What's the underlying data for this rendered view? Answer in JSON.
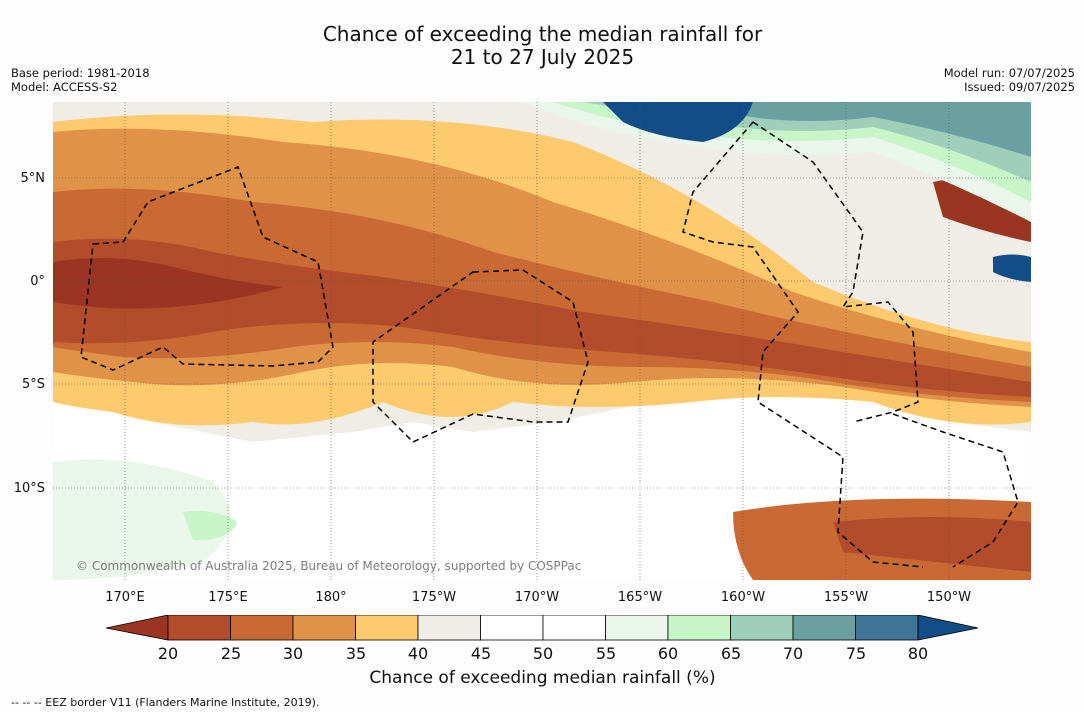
{
  "title": {
    "line1": "Chance of exceeding the median rainfall for",
    "line2": "21 to 27 July 2025"
  },
  "meta_left": {
    "base_period": "Base period: 1981-2018",
    "model": "Model: ACCESS-S2"
  },
  "meta_right": {
    "model_run": "Model run: 07/07/2025",
    "issued": "Issued: 09/07/2025"
  },
  "lat_labels": [
    "5°N",
    "0°",
    "5°S",
    "10°S"
  ],
  "lon_labels": [
    "170°E",
    "175°E",
    "180°",
    "175°W",
    "170°W",
    "165°W",
    "160°W",
    "155°W",
    "150°W"
  ],
  "credit": "© Commonwealth of Australia 2025, Bureau of Meteorology, supported by COSPPac",
  "colorbar": {
    "ticks": [
      "20",
      "25",
      "30",
      "35",
      "40",
      "45",
      "50",
      "55",
      "60",
      "65",
      "70",
      "75",
      "80"
    ],
    "colors": [
      "#9a3521",
      "#b24c2b",
      "#c96a34",
      "#e09248",
      "#fdca6e",
      "#f0ece6",
      "#ffffff",
      "#ffffff",
      "#eaf6ea",
      "#c7f5c8",
      "#9dcfba",
      "#6ba0a3",
      "#3f7596",
      "#124d88"
    ],
    "label": "Chance of exceeding median rainfall (%)"
  },
  "legend_note": "--  --  -- EEZ border V11 (Flanders Marine Institute, 2019)."
}
